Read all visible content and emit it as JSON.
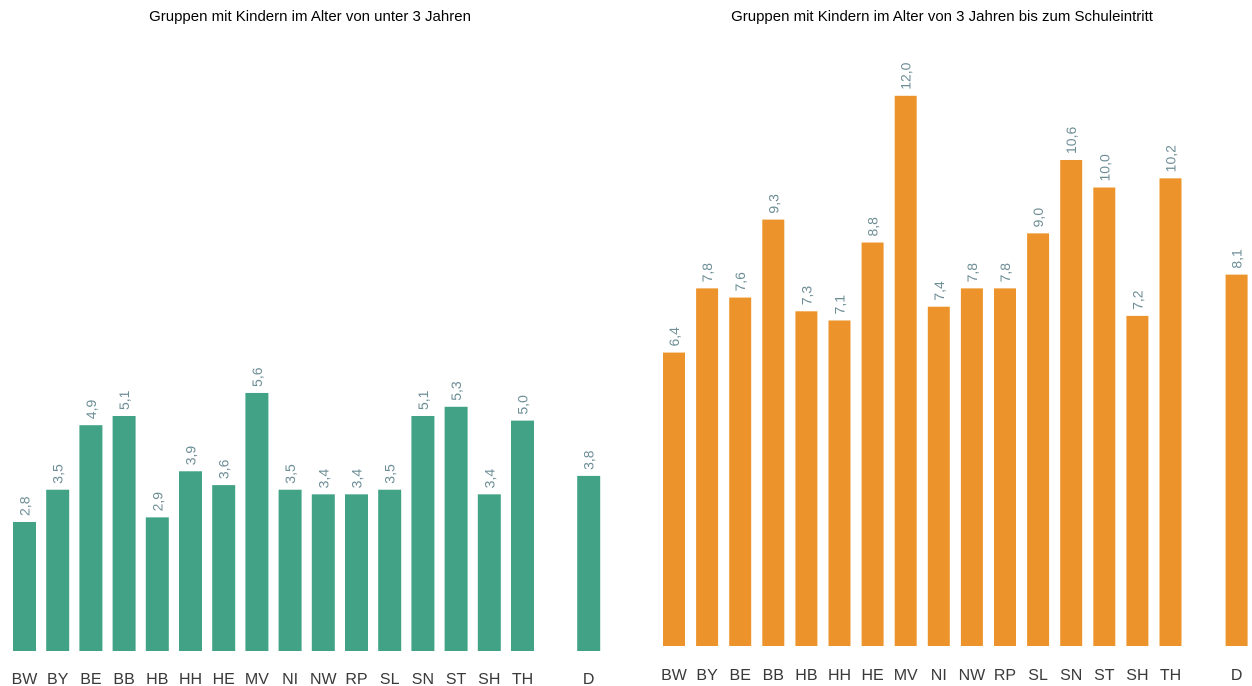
{
  "chart_data": [
    {
      "type": "bar",
      "title": "Gruppen mit Kindern im Alter von unter 3 Jahren",
      "categories": [
        "BW",
        "BY",
        "BE",
        "BB",
        "HB",
        "HH",
        "HE",
        "MV",
        "NI",
        "NW",
        "RP",
        "SL",
        "SN",
        "ST",
        "SH",
        "TH",
        "D"
      ],
      "values": [
        2.8,
        3.5,
        4.9,
        5.1,
        2.9,
        3.9,
        3.6,
        5.6,
        3.5,
        3.4,
        3.4,
        3.5,
        5.1,
        5.3,
        3.4,
        5.0,
        3.8
      ],
      "value_labels": [
        "2,8",
        "3,5",
        "4,9",
        "5,1",
        "2,9",
        "3,9",
        "3,6",
        "5,6",
        "3,5",
        "3,4",
        "3,4",
        "3,5",
        "5,1",
        "5,3",
        "3,4",
        "5,0",
        "3,8"
      ],
      "ylim": [
        0,
        12.5
      ],
      "grid": false,
      "bar_color": "#41a285"
    },
    {
      "type": "bar",
      "title": "Gruppen mit Kindern im Alter von 3 Jahren bis zum Schuleintritt",
      "categories": [
        "BW",
        "BY",
        "BE",
        "BB",
        "HB",
        "HH",
        "HE",
        "MV",
        "NI",
        "NW",
        "RP",
        "SL",
        "SN",
        "ST",
        "SH",
        "TH",
        "D"
      ],
      "values": [
        6.4,
        7.8,
        7.6,
        9.3,
        7.3,
        7.1,
        8.8,
        12.0,
        7.4,
        7.8,
        7.8,
        9.0,
        10.6,
        10.0,
        7.2,
        10.2,
        8.1
      ],
      "value_labels": [
        "6,4",
        "7,8",
        "7,6",
        "9,3",
        "7,3",
        "7,1",
        "8,8",
        "12,0",
        "7,4",
        "7,8",
        "7,8",
        "9,0",
        "10,6",
        "10,0",
        "7,2",
        "10,2",
        "8,1"
      ],
      "ylim": [
        0,
        12.5
      ],
      "grid": false,
      "bar_color": "#ec942b"
    }
  ]
}
